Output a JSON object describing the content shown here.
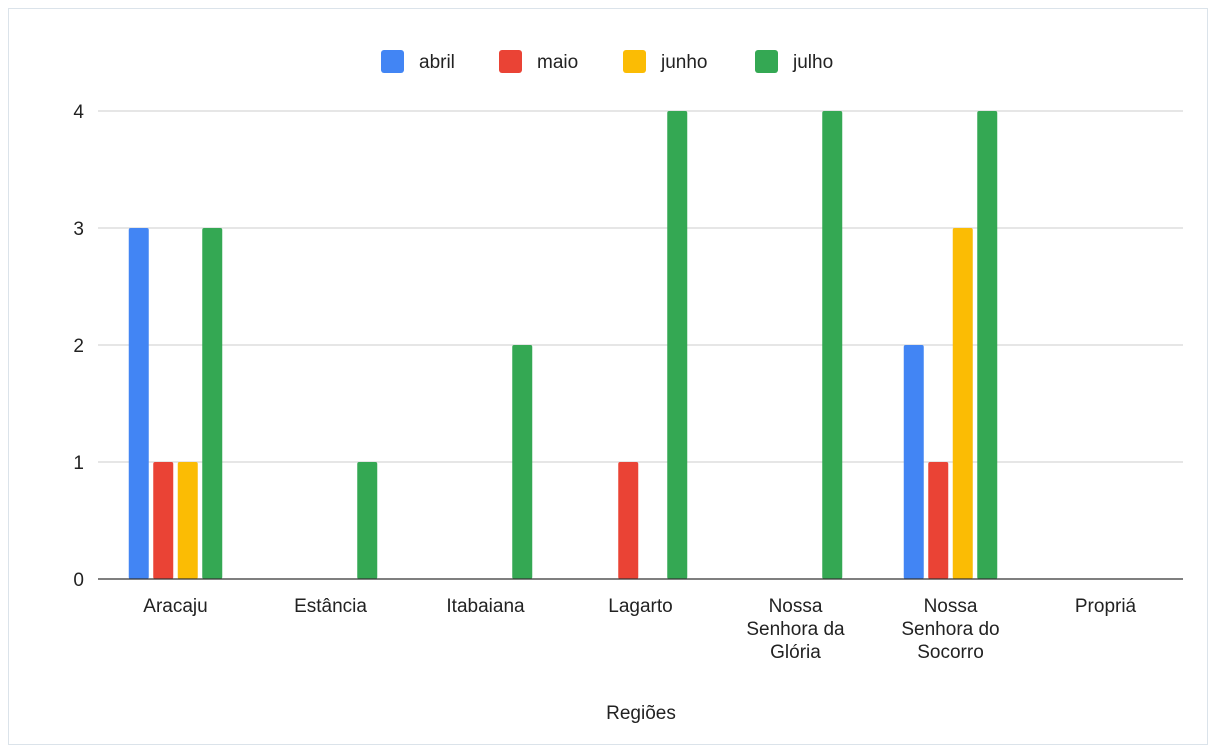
{
  "chart_data": {
    "type": "bar",
    "title": "",
    "xlabel": "Regiões",
    "ylabel": "",
    "ylim": [
      0,
      4
    ],
    "yticks": [
      0,
      1,
      2,
      3,
      4
    ],
    "grid": true,
    "legend_position": "top",
    "categories": [
      [
        "Aracaju"
      ],
      [
        "Estância"
      ],
      [
        "Itabaiana"
      ],
      [
        "Lagarto"
      ],
      [
        "Nossa",
        "Senhora da",
        "Glória"
      ],
      [
        "Nossa",
        "Senhora do",
        "Socorro"
      ],
      [
        "Propriá"
      ]
    ],
    "series": [
      {
        "name": "abril",
        "color": "#4285f4",
        "values": [
          3,
          0,
          0,
          0,
          0,
          2,
          0
        ]
      },
      {
        "name": "maio",
        "color": "#ea4335",
        "values": [
          1,
          0,
          0,
          1,
          0,
          1,
          0
        ]
      },
      {
        "name": "junho",
        "color": "#fbbc04",
        "values": [
          1,
          0,
          0,
          0,
          0,
          3,
          0
        ]
      },
      {
        "name": "julho",
        "color": "#34a853",
        "values": [
          3,
          1,
          2,
          4,
          4,
          4,
          0
        ]
      }
    ]
  }
}
